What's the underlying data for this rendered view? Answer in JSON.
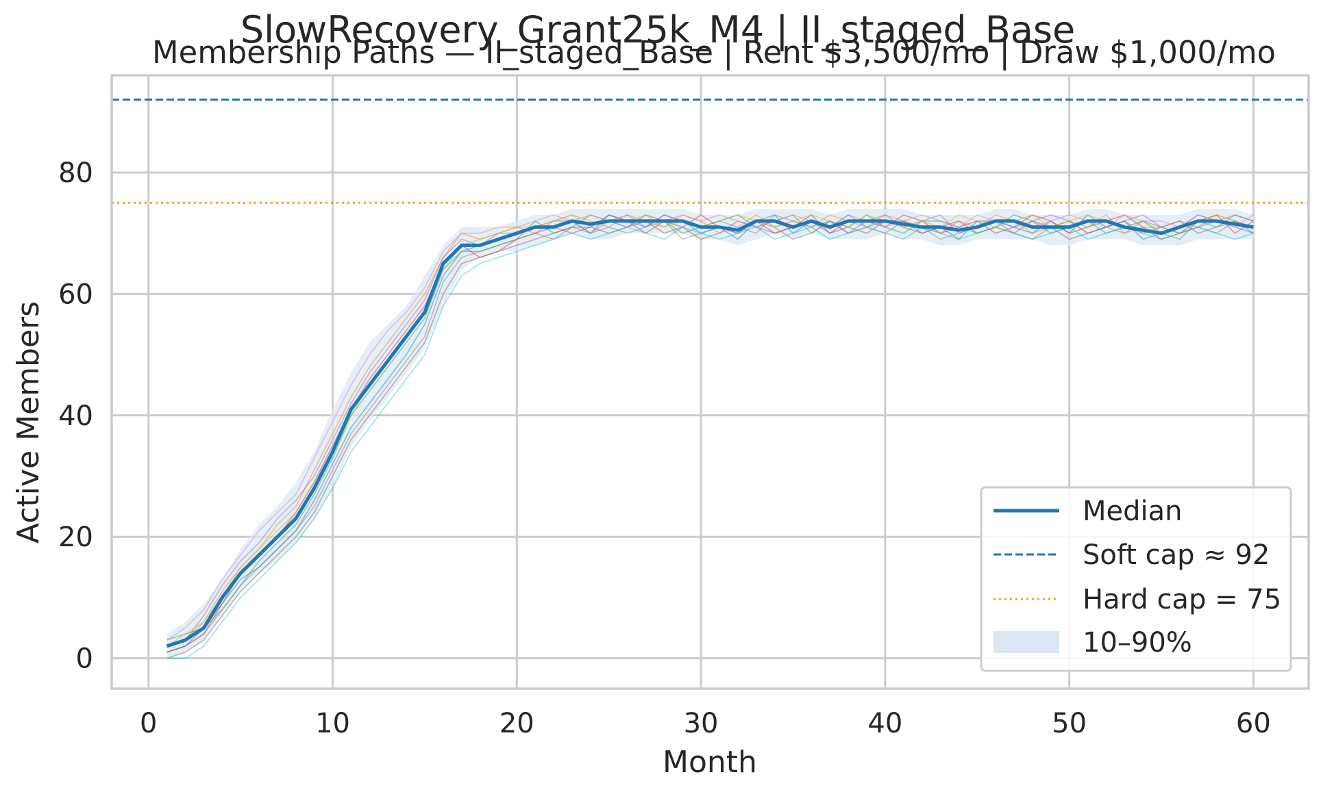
{
  "chart_data": {
    "type": "line",
    "title": "SlowRecovery_Grant25k_M4 | II_staged_Base",
    "subtitle": "Membership Paths — II_staged_Base | Rent $3,500/mo | Draw $1,000/mo",
    "xlabel": "Month",
    "ylabel": "Active Members",
    "xlim": [
      -2,
      63
    ],
    "ylim": [
      -5,
      96
    ],
    "xticks": [
      "0",
      "10",
      "20",
      "30",
      "40",
      "50",
      "60"
    ],
    "yticks": [
      "0",
      "20",
      "40",
      "60",
      "80"
    ],
    "grid": true,
    "legend_position": "lower-right",
    "colors": {
      "median": "#1f77b4",
      "soft_cap": "#1f77b4",
      "hard_cap": "#ff9f0e",
      "band": "#dbe8f3",
      "grid": "#cccccc",
      "paths": [
        "#1f77b4",
        "#ff7f0e",
        "#2ca02c",
        "#d62728",
        "#9467bd",
        "#8c564b",
        "#e377c2",
        "#7f7f7f",
        "#bcbd22",
        "#17becf"
      ]
    },
    "soft_cap": 92,
    "hard_cap": 75,
    "months": [
      1,
      2,
      3,
      4,
      5,
      6,
      7,
      8,
      9,
      10,
      11,
      12,
      13,
      14,
      15,
      16,
      17,
      18,
      19,
      20,
      21,
      22,
      23,
      24,
      25,
      26,
      27,
      28,
      29,
      30,
      31,
      32,
      33,
      34,
      35,
      36,
      37,
      38,
      39,
      40,
      41,
      42,
      43,
      44,
      45,
      46,
      47,
      48,
      49,
      50,
      51,
      52,
      53,
      54,
      55,
      56,
      57,
      58,
      59,
      60
    ],
    "series": [
      {
        "name": "Median",
        "values": [
          2,
          3,
          5,
          10,
          14,
          17,
          20,
          23,
          28,
          34,
          41,
          45,
          49,
          53,
          57,
          65,
          68,
          68,
          69,
          70,
          71,
          71,
          72,
          71.5,
          72,
          72,
          72,
          72,
          72,
          71,
          71,
          70.5,
          72,
          72,
          71,
          72,
          71,
          72,
          72,
          72,
          71.5,
          71,
          71,
          70.5,
          71,
          72,
          72,
          71,
          71,
          71,
          72,
          72,
          71,
          70.5,
          70,
          71,
          72,
          72,
          71.5,
          71
        ]
      },
      {
        "name": "Soft cap ≈ 92",
        "values": [
          92
        ]
      },
      {
        "name": "Hard cap = 75",
        "values": [
          75
        ]
      },
      {
        "name": "10–90%",
        "lower": [
          0,
          1,
          3,
          7,
          11,
          14,
          16,
          19,
          23,
          28,
          35,
          39,
          43,
          47,
          51,
          58,
          64,
          66,
          67,
          67,
          68,
          69,
          70,
          69,
          69,
          70,
          70,
          70,
          70,
          69,
          69,
          68,
          69,
          70,
          69,
          70,
          69,
          69,
          69,
          70,
          69,
          69,
          68,
          68,
          69,
          69,
          69,
          69,
          68,
          68,
          69,
          69,
          69,
          68,
          68,
          68,
          69,
          69,
          69,
          69
        ],
        "upper": [
          4,
          6,
          9,
          13,
          18,
          22,
          25,
          29,
          34,
          41,
          47,
          52,
          55,
          58,
          63,
          68,
          71,
          71,
          71,
          72,
          73,
          73,
          74,
          74,
          74,
          74,
          74,
          74,
          74,
          73,
          73,
          73,
          74,
          74,
          74,
          74,
          73,
          74,
          74,
          74,
          74,
          73,
          73,
          73,
          73,
          74,
          74,
          73,
          73,
          73,
          74,
          74,
          73,
          73,
          73,
          73,
          74,
          74,
          74,
          73
        ]
      }
    ],
    "sim_paths": [
      [
        1,
        2,
        5,
        9,
        13,
        15,
        18,
        21,
        26,
        32,
        38,
        42,
        46,
        50,
        55,
        63,
        67,
        68,
        69,
        70,
        71,
        71,
        72,
        70,
        73,
        72,
        71,
        73,
        72,
        70,
        71,
        69,
        72,
        73,
        70,
        72,
        71,
        73,
        71,
        72,
        72,
        70,
        71,
        69,
        72,
        72,
        71,
        70,
        72,
        70,
        73,
        71,
        72,
        69,
        70,
        71,
        73,
        72,
        71,
        70
      ],
      [
        2,
        3,
        6,
        11,
        15,
        18,
        22,
        25,
        31,
        37,
        43,
        48,
        52,
        56,
        60,
        66,
        70,
        69,
        70,
        71,
        70,
        72,
        73,
        72,
        71,
        73,
        72,
        71,
        73,
        72,
        70,
        71,
        73,
        71,
        72,
        71,
        73,
        72,
        71,
        73,
        72,
        71,
        70,
        72,
        71,
        73,
        72,
        70,
        71,
        72,
        71,
        73,
        70,
        71,
        71,
        72,
        71,
        73,
        72,
        71
      ],
      [
        3,
        4,
        5,
        8,
        12,
        16,
        19,
        22,
        27,
        33,
        40,
        44,
        48,
        52,
        56,
        64,
        67,
        67,
        68,
        69,
        72,
        70,
        71,
        73,
        72,
        71,
        73,
        72,
        70,
        71,
        72,
        73,
        71,
        72,
        73,
        70,
        72,
        71,
        73,
        71,
        70,
        72,
        72,
        71,
        70,
        71,
        73,
        72,
        70,
        71,
        72,
        70,
        71,
        72,
        70,
        69,
        72,
        71,
        73,
        72
      ],
      [
        1,
        2,
        4,
        9,
        14,
        17,
        20,
        24,
        29,
        35,
        41,
        46,
        50,
        54,
        58,
        65,
        68,
        66,
        67,
        69,
        70,
        71,
        70,
        71,
        73,
        72,
        70,
        72,
        71,
        73,
        71,
        70,
        72,
        70,
        71,
        73,
        70,
        72,
        72,
        71,
        73,
        72,
        70,
        71,
        72,
        70,
        71,
        73,
        72,
        70,
        71,
        72,
        73,
        71,
        69,
        70,
        72,
        73,
        70,
        72
      ],
      [
        2,
        3,
        7,
        12,
        16,
        19,
        23,
        26,
        30,
        36,
        42,
        47,
        51,
        55,
        59,
        66,
        69,
        68,
        70,
        70,
        71,
        72,
        72,
        70,
        72,
        73,
        71,
        73,
        72,
        71,
        72,
        71,
        70,
        73,
        72,
        71,
        72,
        70,
        72,
        73,
        71,
        72,
        73,
        70,
        71,
        72,
        71,
        72,
        73,
        72,
        70,
        71,
        72,
        73,
        71,
        70,
        71,
        72,
        73,
        72
      ],
      [
        0,
        1,
        3,
        7,
        11,
        14,
        17,
        20,
        24,
        30,
        36,
        40,
        44,
        48,
        52,
        60,
        65,
        66,
        67,
        68,
        69,
        70,
        71,
        71,
        70,
        71,
        72,
        70,
        71,
        69,
        70,
        72,
        71,
        70,
        71,
        72,
        70,
        71,
        70,
        72,
        71,
        70,
        71,
        72,
        70,
        71,
        70,
        72,
        71,
        69,
        70,
        71,
        72,
        70,
        71,
        72,
        70,
        71,
        72,
        70
      ],
      [
        3,
        5,
        8,
        13,
        17,
        21,
        24,
        27,
        33,
        39,
        45,
        50,
        54,
        57,
        61,
        67,
        70,
        70,
        71,
        71,
        72,
        73,
        72,
        73,
        72,
        71,
        73,
        72,
        73,
        72,
        73,
        72,
        71,
        72,
        73,
        72,
        71,
        73,
        72,
        71,
        72,
        73,
        72,
        71,
        73,
        72,
        72,
        71,
        72,
        73,
        72,
        71,
        73,
        72,
        72,
        71,
        73,
        72,
        71,
        73
      ],
      [
        1,
        2,
        4,
        8,
        12,
        15,
        18,
        21,
        25,
        31,
        37,
        41,
        45,
        49,
        53,
        62,
        66,
        67,
        68,
        69,
        70,
        69,
        71,
        70,
        71,
        70,
        71,
        72,
        69,
        70,
        71,
        70,
        72,
        71,
        69,
        70,
        72,
        70,
        71,
        70,
        72,
        71,
        69,
        70,
        71,
        72,
        70,
        69,
        71,
        72,
        70,
        71,
        70,
        72,
        71,
        70,
        71,
        70,
        72,
        71
      ],
      [
        2,
        4,
        6,
        10,
        15,
        18,
        21,
        24,
        29,
        34,
        40,
        45,
        49,
        53,
        57,
        64,
        68,
        69,
        70,
        71,
        71,
        72,
        73,
        71,
        72,
        72,
        73,
        71,
        72,
        71,
        72,
        73,
        72,
        71,
        72,
        73,
        72,
        71,
        73,
        72,
        71,
        72,
        71,
        73,
        72,
        71,
        72,
        73,
        71,
        72,
        73,
        72,
        71,
        72,
        70,
        71,
        72,
        73,
        72,
        71
      ],
      [
        0,
        0,
        2,
        6,
        10,
        13,
        16,
        19,
        23,
        28,
        34,
        38,
        42,
        46,
        50,
        58,
        63,
        65,
        66,
        67,
        68,
        69,
        70,
        69,
        70,
        71,
        70,
        69,
        71,
        70,
        69,
        70,
        71,
        69,
        70,
        71,
        69,
        70,
        71,
        70,
        69,
        71,
        70,
        69,
        70,
        71,
        70,
        69,
        70,
        71,
        69,
        70,
        71,
        70,
        69,
        70,
        71,
        70,
        69,
        70
      ]
    ]
  }
}
